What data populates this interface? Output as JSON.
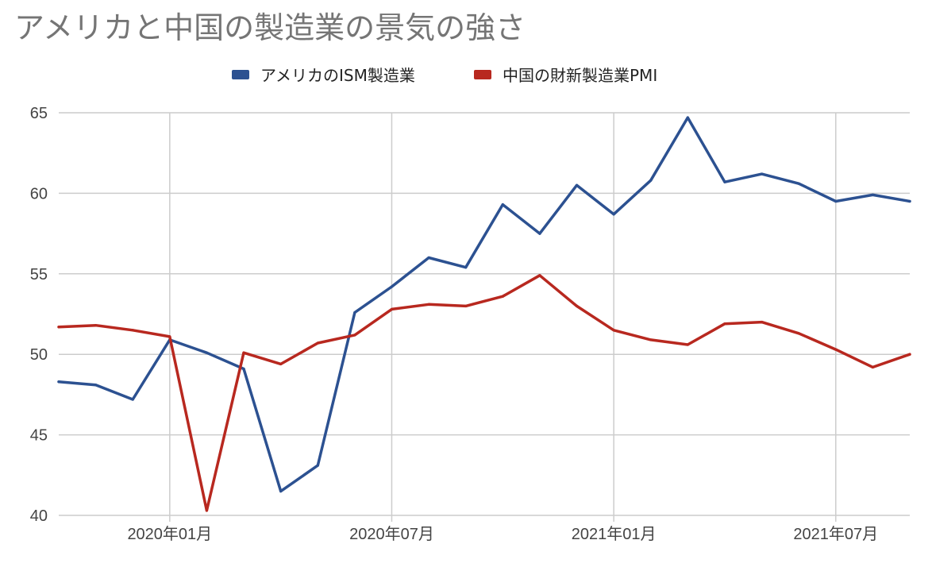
{
  "chart_data": {
    "type": "line",
    "title": "アメリカと中国の製造業の景気の強さ",
    "xlabel": "",
    "ylabel": "",
    "ylim": [
      40,
      65
    ],
    "yticks": [
      40,
      45,
      50,
      55,
      60,
      65
    ],
    "x": [
      "2019-10",
      "2019-11",
      "2019-12",
      "2020-01",
      "2020-02",
      "2020-03",
      "2020-04",
      "2020-05",
      "2020-06",
      "2020-07",
      "2020-08",
      "2020-09",
      "2020-10",
      "2020-11",
      "2020-12",
      "2021-01",
      "2021-02",
      "2021-03",
      "2021-04",
      "2021-05",
      "2021-06",
      "2021-07",
      "2021-08",
      "2021-09"
    ],
    "xticks": [
      {
        "x": "2020-01",
        "label": "2020年01月"
      },
      {
        "x": "2020-07",
        "label": "2020年07月"
      },
      {
        "x": "2021-01",
        "label": "2021年01月"
      },
      {
        "x": "2021-07",
        "label": "2021年07月"
      }
    ],
    "grid": true,
    "legend_position": "top",
    "series": [
      {
        "name": "アメリカのISM製造業",
        "color": "#2c5191",
        "values": [
          48.3,
          48.1,
          47.2,
          50.9,
          50.1,
          49.1,
          41.5,
          43.1,
          52.6,
          54.2,
          56.0,
          55.4,
          59.3,
          57.5,
          60.5,
          58.7,
          60.8,
          64.7,
          60.7,
          61.2,
          60.6,
          59.5,
          59.9,
          59.5
        ]
      },
      {
        "name": "中国の財新製造業PMI",
        "color": "#b8281f",
        "values": [
          51.7,
          51.8,
          51.5,
          51.1,
          40.3,
          50.1,
          49.4,
          50.7,
          51.2,
          52.8,
          53.1,
          53.0,
          53.6,
          54.9,
          53.0,
          51.5,
          50.9,
          50.6,
          51.9,
          52.0,
          51.3,
          50.3,
          49.2,
          50.0
        ]
      }
    ]
  }
}
